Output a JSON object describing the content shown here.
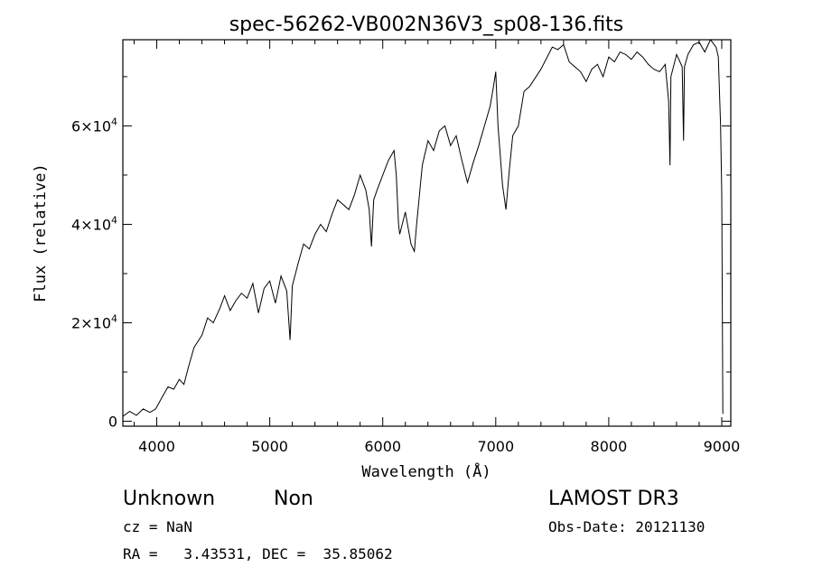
{
  "chart_data": {
    "type": "line",
    "title": "spec-56262-VB002N36V3_sp08-136.fits",
    "xlabel": "Wavelength (Å)",
    "ylabel": "Flux (relative)",
    "xlim": [
      3700,
      9080
    ],
    "ylim": [
      -1000,
      77500
    ],
    "x_ticks": [
      4000,
      5000,
      6000,
      7000,
      8000,
      9000
    ],
    "y_ticks": [
      {
        "value": 0,
        "mant": "0",
        "exp": ""
      },
      {
        "value": 20000,
        "mant": "2×10",
        "exp": "4"
      },
      {
        "value": 40000,
        "mant": "4×10",
        "exp": "4"
      },
      {
        "value": 60000,
        "mant": "6×10",
        "exp": "4"
      }
    ],
    "grid": false,
    "series": [
      {
        "name": "flux",
        "x": [
          3700,
          3760,
          3820,
          3880,
          3940,
          3990,
          4050,
          4100,
          4150,
          4200,
          4240,
          4280,
          4330,
          4400,
          4450,
          4500,
          4560,
          4600,
          4650,
          4700,
          4750,
          4800,
          4850,
          4900,
          4950,
          5000,
          5050,
          5100,
          5150,
          5180,
          5200,
          5250,
          5300,
          5350,
          5400,
          5450,
          5500,
          5550,
          5600,
          5650,
          5700,
          5750,
          5800,
          5850,
          5880,
          5900,
          5920,
          5950,
          6000,
          6050,
          6100,
          6120,
          6140,
          6150,
          6200,
          6250,
          6280,
          6300,
          6350,
          6400,
          6450,
          6500,
          6550,
          6600,
          6650,
          6700,
          6750,
          6800,
          6850,
          6900,
          6950,
          6980,
          7000,
          7020,
          7060,
          7090,
          7120,
          7150,
          7200,
          7250,
          7300,
          7400,
          7500,
          7550,
          7600,
          7650,
          7700,
          7750,
          7800,
          7850,
          7900,
          7950,
          8000,
          8050,
          8100,
          8150,
          8200,
          8250,
          8300,
          8350,
          8400,
          8450,
          8500,
          8530,
          8542,
          8550,
          8600,
          8650,
          8662,
          8670,
          8700,
          8750,
          8800,
          8850,
          8900,
          8950,
          8970,
          8990,
          9000,
          9010
        ],
        "y": [
          1000,
          2000,
          1200,
          2500,
          1800,
          2500,
          5000,
          7000,
          6500,
          8500,
          7500,
          11000,
          15000,
          17500,
          21000,
          20000,
          23000,
          25500,
          22500,
          24500,
          26000,
          25000,
          28000,
          22000,
          27000,
          28500,
          24000,
          29500,
          26500,
          16500,
          27500,
          32000,
          36000,
          35000,
          38000,
          40000,
          38500,
          42000,
          45000,
          44000,
          43000,
          46000,
          50000,
          47000,
          43000,
          35500,
          45000,
          47000,
          50000,
          53000,
          55000,
          50000,
          40000,
          38000,
          42500,
          36000,
          34500,
          40000,
          52000,
          57000,
          55000,
          59000,
          60000,
          56000,
          58000,
          53000,
          48500,
          52500,
          56000,
          60000,
          64000,
          68000,
          71000,
          60000,
          48000,
          43000,
          51000,
          58000,
          60000,
          67000,
          68000,
          71500,
          76000,
          75500,
          76500,
          73000,
          72000,
          71000,
          69000,
          71500,
          72500,
          70000,
          74000,
          73000,
          75000,
          74500,
          73500,
          75000,
          74000,
          72500,
          71500,
          71000,
          72500,
          65000,
          52000,
          70000,
          74500,
          72000,
          57000,
          72000,
          74500,
          76500,
          77000,
          75000,
          77500,
          76000,
          74000,
          60000,
          46000,
          1500
        ]
      }
    ]
  },
  "footer": {
    "object_class": "Unknown",
    "subclass": "Non",
    "cz": "cz = NaN",
    "coords": "RA =   3.43531, DEC =  35.85062",
    "survey": "LAMOST DR3",
    "obs_date": "Obs-Date: 20121130"
  }
}
